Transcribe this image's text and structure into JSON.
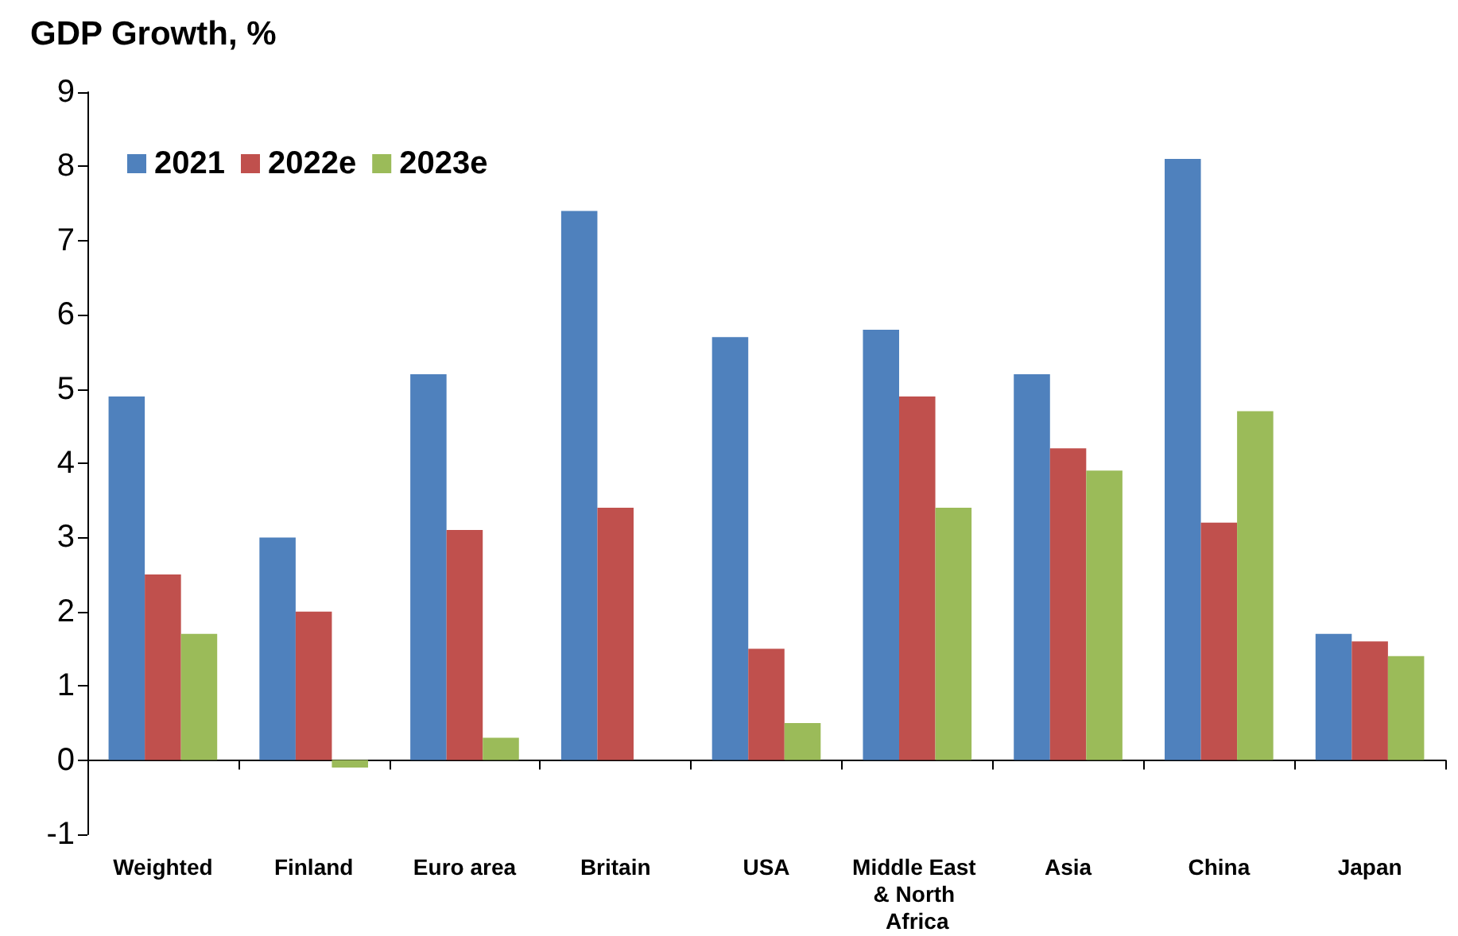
{
  "chart_data": {
    "type": "bar",
    "title": "GDP Growth, %",
    "categories": [
      "Weighted",
      "Finland",
      "Euro area",
      "Britain",
      "USA",
      "Middle East & North Africa",
      "Asia",
      "China",
      "Japan"
    ],
    "series": [
      {
        "name": "2021",
        "color": "#4f81bd",
        "values": [
          4.9,
          3.0,
          5.2,
          7.4,
          5.7,
          5.8,
          5.2,
          8.1,
          1.7
        ]
      },
      {
        "name": "2022e",
        "color": "#c0504d",
        "values": [
          2.5,
          2.0,
          3.1,
          3.4,
          1.5,
          4.9,
          4.2,
          3.2,
          1.6
        ]
      },
      {
        "name": "2023e",
        "color": "#9bbb59",
        "values": [
          1.7,
          -0.1,
          0.3,
          null,
          0.5,
          3.4,
          3.9,
          4.7,
          1.4
        ]
      }
    ],
    "ylim": [
      -1,
      9
    ],
    "yticks": [
      -1,
      0,
      1,
      2,
      3,
      4,
      5,
      6,
      7,
      8,
      9
    ],
    "legend": "top left"
  }
}
